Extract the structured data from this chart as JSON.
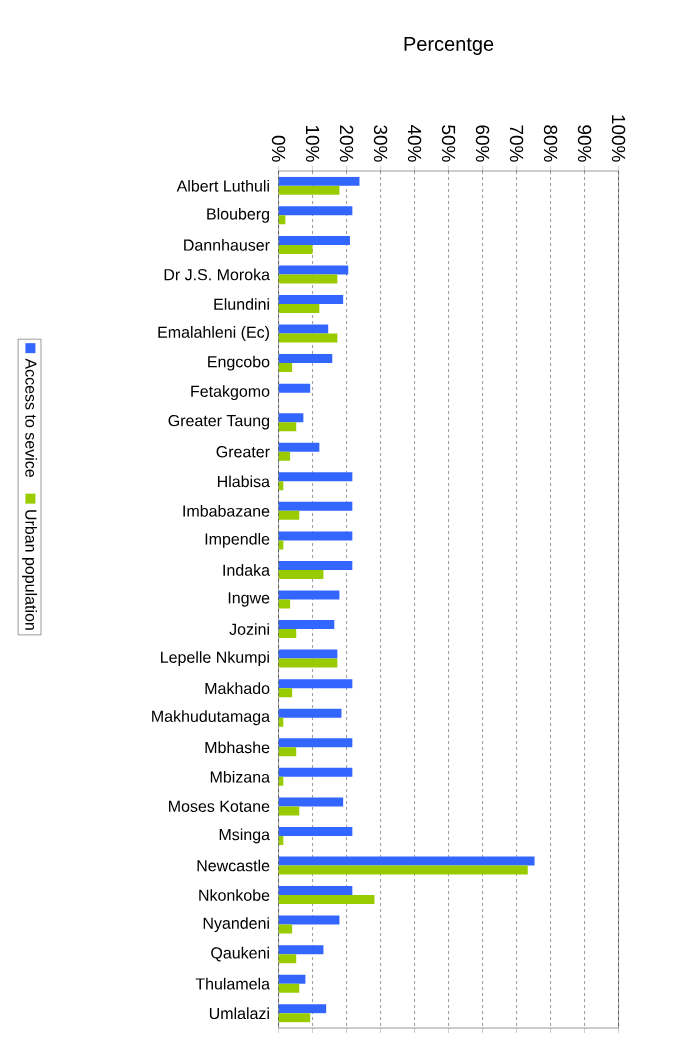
{
  "chart_data": {
    "type": "bar",
    "orientation": "horizontal",
    "title": "Percentge",
    "categories": [
      "Albert Luthuli",
      "Blouberg",
      "Dannhauser",
      "Dr J.S. Moroka",
      "Elundini",
      "Emalahleni (Ec)",
      "Engcobo",
      "Fetakgomo",
      "Greater Taung",
      "Greater",
      "Hlabisa",
      "Imbabazane",
      "Impendle",
      "Indaka",
      "Ingwe",
      "Jozini",
      "Lepelle Nkumpi",
      "Makhado",
      "Makhudutamaga",
      "Mbhashe",
      "Mbizana",
      "Moses Kotane",
      "Msinga",
      "Newcastle",
      "Nkonkobe",
      "Nyandeni",
      "Qaukeni",
      "Thulamela",
      "Umlalazi"
    ],
    "series": [
      {
        "name": "Access to sevice",
        "color": "#3366ff",
        "values": [
          23.8,
          21.7,
          21,
          20.5,
          19,
          14.6,
          15.8,
          9.3,
          7.3,
          12,
          21.7,
          21.7,
          21.7,
          21.7,
          17.9,
          16.4,
          17.3,
          21.7,
          18.5,
          21.7,
          21.7,
          19,
          21.7,
          75.3,
          21.7,
          17.9,
          13.2,
          7.9,
          14
        ]
      },
      {
        "name": "Urban population",
        "color": "#99cc00",
        "values": [
          17.9,
          2,
          10,
          17.3,
          12,
          17.3,
          4,
          0,
          5.2,
          3.4,
          1.4,
          6.1,
          1.4,
          13.2,
          3.4,
          5.2,
          17.3,
          4,
          1.4,
          5.2,
          1.4,
          6.1,
          1.4,
          73.3,
          28.2,
          4,
          5.2,
          6.1,
          9.3
        ]
      }
    ],
    "xlim": [
      0,
      100
    ],
    "xticks": [
      {
        "value": 0,
        "label": "0%"
      },
      {
        "value": 10,
        "label": "10%"
      },
      {
        "value": 20,
        "label": "20%"
      },
      {
        "value": 30,
        "label": "30%"
      },
      {
        "value": 40,
        "label": "40%"
      },
      {
        "value": 50,
        "label": "50%"
      },
      {
        "value": 60,
        "label": "60%"
      },
      {
        "value": 70,
        "label": "70%"
      },
      {
        "value": 80,
        "label": "80%"
      },
      {
        "value": 90,
        "label": "90%"
      },
      {
        "value": 100,
        "label": "100%"
      }
    ],
    "grid": "x",
    "legend": "left"
  }
}
